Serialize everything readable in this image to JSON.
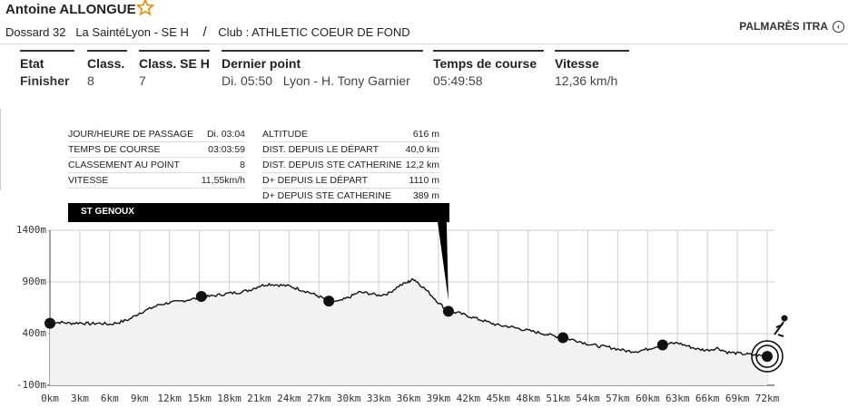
{
  "runner": {
    "name": "Antoine ALLONGUE",
    "bib": "Dossard 32",
    "race": "La SaintéLyon - SE H",
    "separator": "/",
    "club": "Club : ATHLETIC COEUR DE FOND",
    "palmares_label": "PALMARÈS ITRA",
    "palmares_icon": "arrow-left-circle-icon",
    "favorite_icon": "star-outline-icon"
  },
  "summary": [
    {
      "label": "Etat",
      "value": "Finisher",
      "bold": true
    },
    {
      "label": "Class.",
      "value": "8"
    },
    {
      "label": "Class. SE H",
      "value": "7"
    },
    {
      "label": "Dernier point",
      "value": "Di. 05:50   Lyon - H. Tony Garnier"
    },
    {
      "label": "Temps de course",
      "value": "05:49:58"
    },
    {
      "label": "Vitesse",
      "value": "12,36 km/h"
    }
  ],
  "tooltip": {
    "left_rows": [
      {
        "label": "JOUR/HEURE DE PASSAGE",
        "value": "Di. 03:04"
      },
      {
        "label": "TEMPS DE COURSE",
        "value": "03:03:59"
      },
      {
        "label": "CLASSEMENT AU POINT",
        "value": "8"
      },
      {
        "label": "VITESSE",
        "value": "11,55km/h"
      }
    ],
    "right_rows": [
      {
        "label": "ALTITUDE",
        "value": "616 m"
      },
      {
        "label": "DIST. DEPUIS LE DÉPART",
        "value": "40,0 km"
      },
      {
        "label": "DIST. DEPUIS STE CATHERINE",
        "value": "12,2 km"
      },
      {
        "label": "D+ DEPUIS LE DÉPART",
        "value": "1110 m"
      },
      {
        "label": "D+ DEPUIS STE CATHERINE",
        "value": "389 m"
      }
    ],
    "checkpoint_name": "ST GENOUX"
  },
  "chart_data": {
    "type": "area",
    "x_unit": "km",
    "y_unit": "m",
    "xlim": [
      0,
      72
    ],
    "ylim": [
      -100,
      1400
    ],
    "x_ticks": [
      "0km",
      "3km",
      "6km",
      "9km",
      "12km",
      "15km",
      "18km",
      "21km",
      "24km",
      "27km",
      "30km",
      "33km",
      "36km",
      "39km",
      "42km",
      "45km",
      "48km",
      "51km",
      "54km",
      "57km",
      "60km",
      "63km",
      "66km",
      "69km",
      "72km"
    ],
    "y_ticks": [
      "1400m",
      "900m",
      "400m",
      "-100m"
    ],
    "grid": true,
    "fill_color": "#f3f1f3",
    "line_color": "#111111",
    "profile": [
      [
        0,
        500
      ],
      [
        1,
        510
      ],
      [
        2,
        500
      ],
      [
        3,
        505
      ],
      [
        4,
        495
      ],
      [
        5,
        500
      ],
      [
        6,
        490
      ],
      [
        7,
        510
      ],
      [
        8,
        540
      ],
      [
        9,
        600
      ],
      [
        10,
        640
      ],
      [
        11,
        680
      ],
      [
        12,
        700
      ],
      [
        13,
        710
      ],
      [
        14,
        730
      ],
      [
        15,
        745
      ],
      [
        16,
        760
      ],
      [
        17,
        775
      ],
      [
        18,
        790
      ],
      [
        19,
        800
      ],
      [
        20,
        820
      ],
      [
        21,
        860
      ],
      [
        22,
        880
      ],
      [
        23,
        870
      ],
      [
        24,
        860
      ],
      [
        25,
        830
      ],
      [
        26,
        800
      ],
      [
        27,
        760
      ],
      [
        28,
        720
      ],
      [
        29,
        710
      ],
      [
        30,
        750
      ],
      [
        31,
        800
      ],
      [
        32,
        790
      ],
      [
        33,
        770
      ],
      [
        34,
        790
      ],
      [
        35,
        860
      ],
      [
        36,
        900
      ],
      [
        36.5,
        930
      ],
      [
        37,
        890
      ],
      [
        38,
        800
      ],
      [
        39,
        700
      ],
      [
        40,
        616
      ],
      [
        41,
        600
      ],
      [
        42,
        570
      ],
      [
        43,
        540
      ],
      [
        44,
        510
      ],
      [
        45,
        480
      ],
      [
        46,
        470
      ],
      [
        47,
        450
      ],
      [
        48,
        430
      ],
      [
        49,
        410
      ],
      [
        50,
        390
      ],
      [
        51,
        370
      ],
      [
        52,
        350
      ],
      [
        53,
        330
      ],
      [
        54,
        300
      ],
      [
        55,
        280
      ],
      [
        56,
        270
      ],
      [
        57,
        250
      ],
      [
        58,
        230
      ],
      [
        59,
        230
      ],
      [
        60,
        250
      ],
      [
        61,
        280
      ],
      [
        62,
        300
      ],
      [
        63,
        310
      ],
      [
        64,
        280
      ],
      [
        65,
        250
      ],
      [
        66,
        240
      ],
      [
        67,
        260
      ],
      [
        68,
        220
      ],
      [
        69,
        210
      ],
      [
        70,
        200
      ],
      [
        71,
        190
      ],
      [
        72,
        180
      ]
    ],
    "checkpoints": [
      {
        "km": 0,
        "alt": 500
      },
      {
        "km": 15.2,
        "alt": 760
      },
      {
        "km": 28,
        "alt": 715
      },
      {
        "km": 40,
        "alt": 616
      },
      {
        "km": 51.5,
        "alt": 360
      },
      {
        "km": 61.5,
        "alt": 290
      },
      {
        "km": 72,
        "alt": 180,
        "current": true
      }
    ]
  }
}
